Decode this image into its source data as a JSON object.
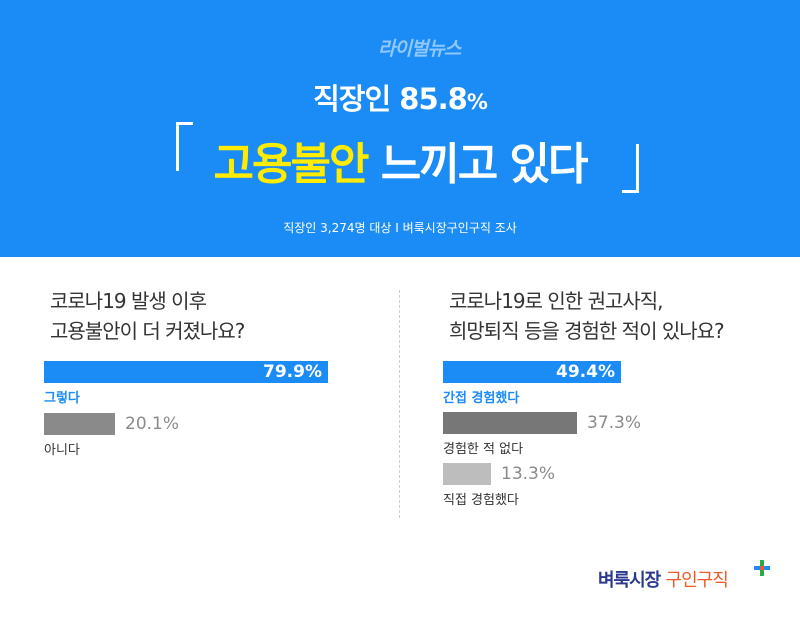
{
  "header": {
    "brand": "라이벌뉴스",
    "subtitle_main": "직장인 85.8",
    "subtitle_pct": "%",
    "headline_highlight": "고용불안",
    "headline_rest": " 느끼고 있다",
    "survey_note": "직장인 3,274명 대상  I  벼룩시장구인구직 조사"
  },
  "colors": {
    "header_bg": "#1b8bf6",
    "highlight": "#ffec00",
    "bar_primary": "#1b8bf6",
    "bar_dark_gray": "#777777",
    "bar_gray": "#8a8a8a",
    "bar_light_gray": "#bdbdbd"
  },
  "chart_data": [
    {
      "type": "bar",
      "question": "코로나19 발생 이후\n고용불안이 더 커졌나요?",
      "categories": [
        "그렇다",
        "아니다"
      ],
      "values": [
        79.9,
        20.1
      ],
      "value_labels": [
        "79.9%",
        "20.1%"
      ],
      "xlim": [
        0,
        100
      ],
      "colors": [
        "#1b8bf6",
        "#8a8a8a"
      ]
    },
    {
      "type": "bar",
      "question": "코로나19로 인한 권고사직,\n희망퇴직 등을 경험한 적이 있나요?",
      "categories": [
        "간접 경험했다",
        "경험한 적 없다",
        "직접 경험했다"
      ],
      "values": [
        49.4,
        37.3,
        13.3
      ],
      "value_labels": [
        "49.4%",
        "37.3%",
        "13.3%"
      ],
      "xlim": [
        0,
        100
      ],
      "colors": [
        "#1b8bf6",
        "#777777",
        "#bdbdbd"
      ]
    }
  ],
  "footer": {
    "logo_part1": "벼룩시장",
    "logo_part2": "구인구직",
    "logo_icon": "plus-icon"
  }
}
